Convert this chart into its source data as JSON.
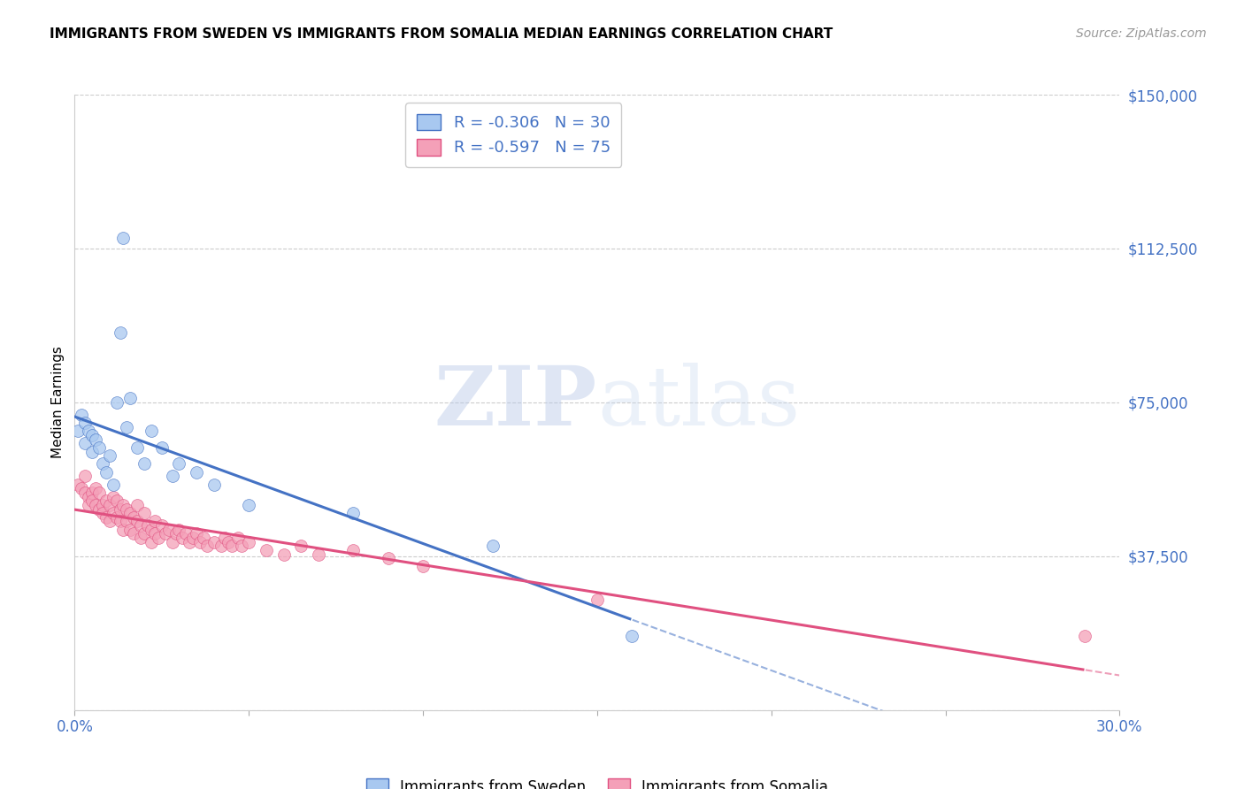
{
  "title": "IMMIGRANTS FROM SWEDEN VS IMMIGRANTS FROM SOMALIA MEDIAN EARNINGS CORRELATION CHART",
  "source": "Source: ZipAtlas.com",
  "ylabel": "Median Earnings",
  "ylim": [
    0,
    150000
  ],
  "xlim": [
    0,
    0.3
  ],
  "y_ticks": [
    0,
    37500,
    75000,
    112500,
    150000
  ],
  "y_tick_labels": [
    "",
    "$37,500",
    "$75,000",
    "$112,500",
    "$150,000"
  ],
  "x_tick_labels": [
    "0.0%",
    "",
    "",
    "",
    "",
    "",
    "30.0%"
  ],
  "sweden_color": "#a8c8f0",
  "somalia_color": "#f4a0b8",
  "sweden_line_color": "#4472c4",
  "somalia_line_color": "#e05080",
  "legend_R_sweden": "-0.306",
  "legend_N_sweden": "30",
  "legend_R_somalia": "-0.597",
  "legend_N_somalia": "75",
  "background_color": "#ffffff",
  "sweden_x": [
    0.001,
    0.002,
    0.003,
    0.003,
    0.004,
    0.005,
    0.005,
    0.006,
    0.007,
    0.008,
    0.009,
    0.01,
    0.011,
    0.012,
    0.013,
    0.014,
    0.015,
    0.016,
    0.018,
    0.02,
    0.022,
    0.025,
    0.028,
    0.03,
    0.035,
    0.04,
    0.05,
    0.08,
    0.12,
    0.16
  ],
  "sweden_y": [
    68000,
    72000,
    65000,
    70000,
    68000,
    67000,
    63000,
    66000,
    64000,
    60000,
    58000,
    62000,
    55000,
    75000,
    92000,
    115000,
    69000,
    76000,
    64000,
    60000,
    68000,
    64000,
    57000,
    60000,
    58000,
    55000,
    50000,
    48000,
    40000,
    18000
  ],
  "somalia_x": [
    0.001,
    0.002,
    0.003,
    0.003,
    0.004,
    0.004,
    0.005,
    0.005,
    0.006,
    0.006,
    0.007,
    0.007,
    0.008,
    0.008,
    0.009,
    0.009,
    0.01,
    0.01,
    0.011,
    0.011,
    0.012,
    0.012,
    0.013,
    0.013,
    0.014,
    0.014,
    0.015,
    0.015,
    0.016,
    0.016,
    0.017,
    0.017,
    0.018,
    0.018,
    0.019,
    0.019,
    0.02,
    0.02,
    0.021,
    0.022,
    0.022,
    0.023,
    0.023,
    0.024,
    0.025,
    0.026,
    0.027,
    0.028,
    0.029,
    0.03,
    0.031,
    0.032,
    0.033,
    0.034,
    0.035,
    0.036,
    0.037,
    0.038,
    0.04,
    0.042,
    0.043,
    0.044,
    0.045,
    0.047,
    0.048,
    0.05,
    0.055,
    0.06,
    0.065,
    0.07,
    0.08,
    0.09,
    0.1,
    0.15,
    0.29
  ],
  "somalia_y": [
    55000,
    54000,
    53000,
    57000,
    52000,
    50000,
    53000,
    51000,
    50000,
    54000,
    49000,
    53000,
    50000,
    48000,
    51000,
    47000,
    50000,
    46000,
    52000,
    48000,
    47000,
    51000,
    49000,
    46000,
    50000,
    44000,
    49000,
    46000,
    48000,
    44000,
    47000,
    43000,
    46000,
    50000,
    45000,
    42000,
    48000,
    43000,
    45000,
    44000,
    41000,
    46000,
    43000,
    42000,
    45000,
    43000,
    44000,
    41000,
    43000,
    44000,
    42000,
    43000,
    41000,
    42000,
    43000,
    41000,
    42000,
    40000,
    41000,
    40000,
    42000,
    41000,
    40000,
    42000,
    40000,
    41000,
    39000,
    38000,
    40000,
    38000,
    39000,
    37000,
    35000,
    27000,
    18000
  ]
}
